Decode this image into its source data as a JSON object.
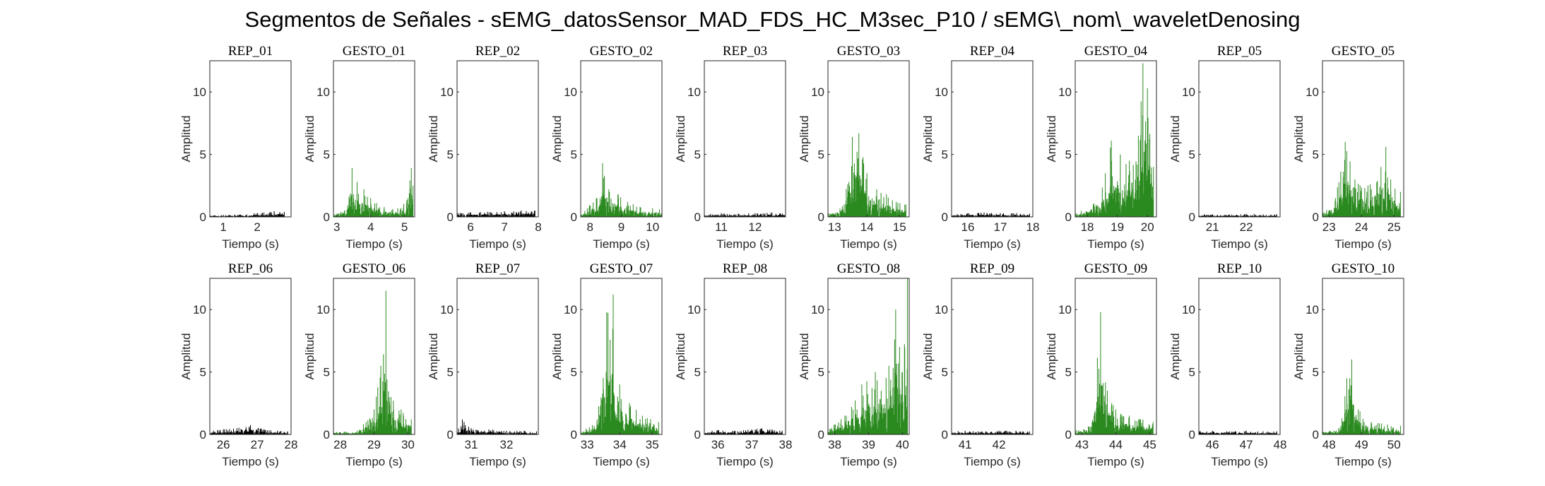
{
  "figure": {
    "title": "Segmentos de Señales - sEMG_datosSensor_MAD_FDS_HC_M3sec_P10 / sEMG\\_nom\\_waveletDenosing"
  },
  "colors": {
    "rep": "#000000",
    "gesto": "#2b8a1f",
    "axes": "#262626"
  },
  "chart_data": [
    {
      "type": "area",
      "title": "REP_01",
      "xlabel": "Tiempo (s)",
      "ylabel": "Amplitud",
      "xlim": [
        0.6,
        3.0
      ],
      "xticks": [
        1,
        2
      ],
      "ylim": [
        0,
        12.5
      ],
      "yticks": [
        0,
        5,
        10
      ],
      "class": "rep",
      "series": [
        {
          "x": [
            0.6,
            1.0,
            1.5,
            2.0,
            2.5,
            2.8
          ],
          "y": [
            0.1,
            0.15,
            0.2,
            0.3,
            0.45,
            0.4
          ]
        }
      ]
    },
    {
      "type": "area",
      "title": "GESTO_01",
      "xlabel": "Tiempo (s)",
      "ylabel": "Amplitud",
      "xlim": [
        2.9,
        5.3
      ],
      "xticks": [
        3,
        4,
        5
      ],
      "ylim": [
        0,
        12.5
      ],
      "yticks": [
        0,
        5,
        10
      ],
      "class": "gesto",
      "series": [
        {
          "x": [
            2.9,
            3.3,
            3.45,
            3.6,
            3.8,
            4.0,
            4.4,
            4.8,
            5.1,
            5.2,
            5.25
          ],
          "y": [
            0.2,
            0.6,
            3.9,
            2.8,
            2.2,
            1.5,
            0.8,
            0.7,
            1.5,
            3.9,
            2.5
          ]
        }
      ]
    },
    {
      "type": "area",
      "title": "REP_02",
      "xlabel": "Tiempo (s)",
      "ylabel": "Amplitud",
      "xlim": [
        5.6,
        8.0
      ],
      "xticks": [
        6,
        7,
        8
      ],
      "ylim": [
        0,
        12.5
      ],
      "yticks": [
        0,
        5,
        10
      ],
      "class": "rep",
      "series": [
        {
          "x": [
            5.6,
            6.0,
            6.5,
            7.0,
            7.5,
            7.9
          ],
          "y": [
            0.3,
            0.35,
            0.4,
            0.45,
            0.5,
            0.5
          ]
        }
      ]
    },
    {
      "type": "area",
      "title": "GESTO_02",
      "xlabel": "Tiempo (s)",
      "ylabel": "Amplitud",
      "xlim": [
        7.7,
        10.3
      ],
      "xticks": [
        8,
        9,
        10
      ],
      "ylim": [
        0,
        12.5
      ],
      "yticks": [
        0,
        5,
        10
      ],
      "class": "gesto",
      "series": [
        {
          "x": [
            7.7,
            8.2,
            8.4,
            8.6,
            8.9,
            9.2,
            9.6,
            10.0,
            10.3
          ],
          "y": [
            0.3,
            1.5,
            4.3,
            2.2,
            1.8,
            1.2,
            0.8,
            0.7,
            0.6
          ]
        }
      ]
    },
    {
      "type": "area",
      "title": "REP_03",
      "xlabel": "Tiempo (s)",
      "ylabel": "Amplitud",
      "xlim": [
        10.5,
        12.9
      ],
      "xticks": [
        11,
        12
      ],
      "ylim": [
        0,
        12.5
      ],
      "yticks": [
        0,
        5,
        10
      ],
      "class": "rep",
      "series": [
        {
          "x": [
            10.5,
            11.0,
            11.5,
            12.0,
            12.5,
            12.9
          ],
          "y": [
            0.25,
            0.3,
            0.25,
            0.3,
            0.35,
            0.3
          ]
        }
      ]
    },
    {
      "type": "area",
      "title": "GESTO_03",
      "xlabel": "Tiempo (s)",
      "ylabel": "Amplitud",
      "xlim": [
        12.8,
        15.3
      ],
      "xticks": [
        13,
        14,
        15
      ],
      "ylim": [
        0,
        12.5
      ],
      "yticks": [
        0,
        5,
        10
      ],
      "class": "gesto",
      "series": [
        {
          "x": [
            12.8,
            13.3,
            13.55,
            13.75,
            14.0,
            14.3,
            14.6,
            14.9,
            15.2
          ],
          "y": [
            0.4,
            1.0,
            6.4,
            6.7,
            3.5,
            2.2,
            1.8,
            1.2,
            1.0
          ]
        }
      ]
    },
    {
      "type": "area",
      "title": "REP_04",
      "xlabel": "Tiempo (s)",
      "ylabel": "Amplitud",
      "xlim": [
        15.5,
        18.0
      ],
      "xticks": [
        16,
        17,
        18
      ],
      "ylim": [
        0,
        12.5
      ],
      "yticks": [
        0,
        5,
        10
      ],
      "class": "rep",
      "series": [
        {
          "x": [
            15.5,
            16.0,
            16.5,
            17.0,
            17.5,
            17.9
          ],
          "y": [
            0.2,
            0.3,
            0.35,
            0.3,
            0.3,
            0.25
          ]
        }
      ]
    },
    {
      "type": "area",
      "title": "GESTO_04",
      "xlabel": "Tiempo (s)",
      "ylabel": "Amplitud",
      "xlim": [
        17.6,
        20.3
      ],
      "xticks": [
        18,
        19,
        20
      ],
      "ylim": [
        0,
        12.5
      ],
      "yticks": [
        0,
        5,
        10
      ],
      "class": "gesto",
      "series": [
        {
          "x": [
            17.6,
            18.2,
            18.6,
            18.8,
            19.1,
            19.4,
            19.7,
            19.85,
            20.0,
            20.2
          ],
          "y": [
            0.3,
            1.0,
            3.5,
            6.1,
            5.0,
            4.5,
            6.5,
            12.3,
            10.3,
            4.0
          ]
        }
      ]
    },
    {
      "type": "area",
      "title": "REP_05",
      "xlabel": "Tiempo (s)",
      "ylabel": "Amplitud",
      "xlim": [
        20.6,
        23.0
      ],
      "xticks": [
        21,
        22
      ],
      "ylim": [
        0,
        12.5
      ],
      "yticks": [
        0,
        5,
        10
      ],
      "class": "rep",
      "series": [
        {
          "x": [
            20.6,
            21.0,
            21.5,
            22.0,
            22.5,
            22.9
          ],
          "y": [
            0.2,
            0.2,
            0.2,
            0.25,
            0.2,
            0.2
          ]
        }
      ]
    },
    {
      "type": "area",
      "title": "GESTO_05",
      "xlabel": "Tiempo (s)",
      "ylabel": "Amplitud",
      "xlim": [
        22.8,
        25.3
      ],
      "xticks": [
        23,
        24,
        25
      ],
      "ylim": [
        0,
        12.5
      ],
      "yticks": [
        0,
        5,
        10
      ],
      "class": "gesto",
      "series": [
        {
          "x": [
            22.8,
            23.2,
            23.5,
            23.8,
            24.2,
            24.6,
            24.75,
            24.9,
            25.2
          ],
          "y": [
            0.4,
            1.5,
            6.0,
            3.0,
            2.5,
            4.0,
            5.6,
            3.0,
            2.0
          ]
        }
      ]
    },
    {
      "type": "area",
      "title": "REP_06",
      "xlabel": "Tiempo (s)",
      "ylabel": "Amplitud",
      "xlim": [
        25.6,
        28.0
      ],
      "xticks": [
        26,
        27,
        28
      ],
      "ylim": [
        0,
        12.5
      ],
      "yticks": [
        0,
        5,
        10
      ],
      "class": "rep",
      "series": [
        {
          "x": [
            25.6,
            26.0,
            26.4,
            26.8,
            27.2,
            27.6,
            27.9
          ],
          "y": [
            0.3,
            0.4,
            0.5,
            0.75,
            0.4,
            0.3,
            0.25
          ]
        }
      ]
    },
    {
      "type": "area",
      "title": "GESTO_06",
      "xlabel": "Tiempo (s)",
      "ylabel": "Amplitud",
      "xlim": [
        27.8,
        30.2
      ],
      "xticks": [
        28,
        29,
        30
      ],
      "ylim": [
        0,
        12.5
      ],
      "yticks": [
        0,
        5,
        10
      ],
      "class": "gesto",
      "series": [
        {
          "x": [
            27.8,
            28.5,
            29.0,
            29.2,
            29.35,
            29.5,
            29.8,
            30.1
          ],
          "y": [
            0.2,
            0.3,
            2.0,
            5.5,
            11.5,
            3.0,
            2.0,
            1.2
          ]
        }
      ]
    },
    {
      "type": "area",
      "title": "REP_07",
      "xlabel": "Tiempo (s)",
      "ylabel": "Amplitud",
      "xlim": [
        30.6,
        32.9
      ],
      "xticks": [
        31,
        32
      ],
      "ylim": [
        0,
        12.5
      ],
      "yticks": [
        0,
        5,
        10
      ],
      "class": "rep",
      "series": [
        {
          "x": [
            30.6,
            30.75,
            31.0,
            31.5,
            32.0,
            32.5,
            32.85
          ],
          "y": [
            0.3,
            1.2,
            0.5,
            0.4,
            0.3,
            0.3,
            0.25
          ]
        }
      ]
    },
    {
      "type": "area",
      "title": "GESTO_07",
      "xlabel": "Tiempo (s)",
      "ylabel": "Amplitud",
      "xlim": [
        32.8,
        35.3
      ],
      "xticks": [
        33,
        34,
        35
      ],
      "ylim": [
        0,
        12.5
      ],
      "yticks": [
        0,
        5,
        10
      ],
      "class": "gesto",
      "series": [
        {
          "x": [
            32.8,
            33.3,
            33.6,
            33.8,
            34.0,
            34.3,
            34.7,
            35.2
          ],
          "y": [
            0.3,
            1.0,
            9.8,
            11.2,
            4.0,
            2.5,
            1.5,
            1.0
          ]
        }
      ]
    },
    {
      "type": "area",
      "title": "REP_08",
      "xlabel": "Tiempo (s)",
      "ylabel": "Amplitud",
      "xlim": [
        35.6,
        38.0
      ],
      "xticks": [
        36,
        37,
        38
      ],
      "ylim": [
        0,
        12.5
      ],
      "yticks": [
        0,
        5,
        10
      ],
      "class": "rep",
      "series": [
        {
          "x": [
            35.6,
            36.0,
            36.5,
            37.0,
            37.3,
            37.6,
            37.9
          ],
          "y": [
            0.3,
            0.35,
            0.3,
            0.4,
            0.5,
            0.4,
            0.3
          ]
        }
      ]
    },
    {
      "type": "area",
      "title": "GESTO_08",
      "xlabel": "Tiempo (s)",
      "ylabel": "Amplitud",
      "xlim": [
        37.8,
        40.2
      ],
      "xticks": [
        38,
        39,
        40
      ],
      "ylim": [
        0,
        12.5
      ],
      "yticks": [
        0,
        5,
        10
      ],
      "class": "gesto",
      "series": [
        {
          "x": [
            37.8,
            38.3,
            38.8,
            39.2,
            39.6,
            39.8,
            40.0,
            40.15
          ],
          "y": [
            0.5,
            1.5,
            4.0,
            5.0,
            5.5,
            10.0,
            5.0,
            12.5
          ]
        }
      ]
    },
    {
      "type": "area",
      "title": "REP_09",
      "xlabel": "Tiempo (s)",
      "ylabel": "Amplitud",
      "xlim": [
        40.6,
        43.0
      ],
      "xticks": [
        41,
        42
      ],
      "ylim": [
        0,
        12.5
      ],
      "yticks": [
        0,
        5,
        10
      ],
      "class": "rep",
      "series": [
        {
          "x": [
            40.6,
            41.0,
            41.5,
            42.0,
            42.5,
            42.9
          ],
          "y": [
            0.3,
            0.3,
            0.25,
            0.3,
            0.3,
            0.25
          ]
        }
      ]
    },
    {
      "type": "area",
      "title": "GESTO_09",
      "xlabel": "Tiempo (s)",
      "ylabel": "Amplitud",
      "xlim": [
        42.8,
        45.2
      ],
      "xticks": [
        43,
        44,
        45
      ],
      "ylim": [
        0,
        12.5
      ],
      "yticks": [
        0,
        5,
        10
      ],
      "class": "gesto",
      "series": [
        {
          "x": [
            42.8,
            43.3,
            43.55,
            43.75,
            44.0,
            44.4,
            44.8,
            45.1
          ],
          "y": [
            0.3,
            1.0,
            9.8,
            3.5,
            2.0,
            1.5,
            1.2,
            1.0
          ]
        }
      ]
    },
    {
      "type": "area",
      "title": "REP_10",
      "xlabel": "Tiempo (s)",
      "ylabel": "Amplitud",
      "xlim": [
        45.6,
        48.0
      ],
      "xticks": [
        46,
        47,
        48
      ],
      "ylim": [
        0,
        12.5
      ],
      "yticks": [
        0,
        5,
        10
      ],
      "class": "rep",
      "series": [
        {
          "x": [
            45.6,
            46.0,
            46.5,
            47.0,
            47.5,
            47.9
          ],
          "y": [
            0.3,
            0.3,
            0.25,
            0.3,
            0.25,
            0.25
          ]
        }
      ]
    },
    {
      "type": "area",
      "title": "GESTO_10",
      "xlabel": "Tiempo (s)",
      "ylabel": "Amplitud",
      "xlim": [
        47.8,
        50.3
      ],
      "xticks": [
        48,
        49,
        50
      ],
      "ylim": [
        0,
        12.5
      ],
      "yticks": [
        0,
        5,
        10
      ],
      "class": "gesto",
      "series": [
        {
          "x": [
            47.8,
            48.3,
            48.55,
            48.7,
            48.9,
            49.3,
            49.8,
            50.2
          ],
          "y": [
            0.2,
            0.5,
            4.5,
            6.0,
            2.0,
            1.0,
            0.8,
            0.7
          ]
        }
      ]
    }
  ]
}
